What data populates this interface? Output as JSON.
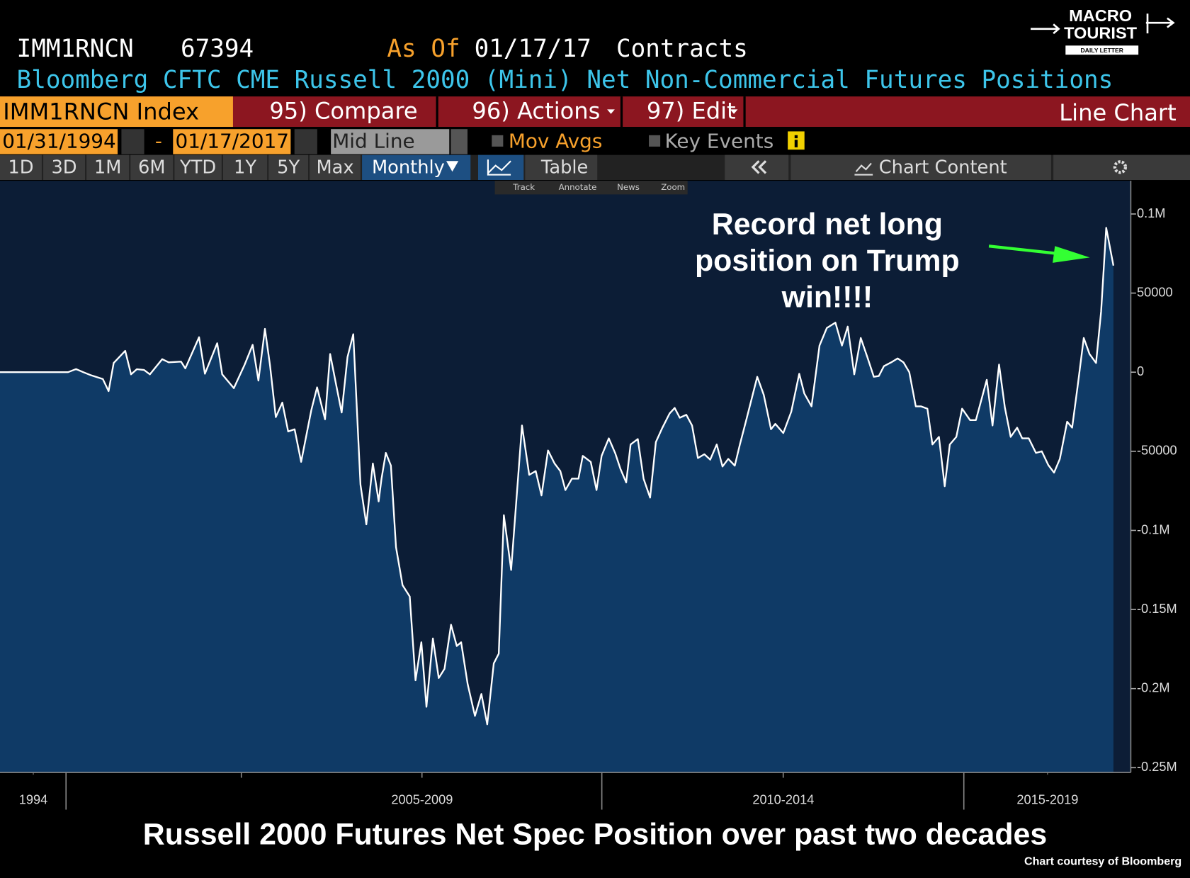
{
  "ui": {
    "ticker": "IMM1RNCN",
    "last": "67394",
    "as_of": "As Of",
    "as_of_date": "01/17/17",
    "units": "Contracts",
    "description": "Bloomberg CFTC CME Russell 2000 (Mini) Net Non-Commercial Futures Positions",
    "security": "IMM1RNCN Index",
    "menu": [
      "95) Compare",
      "96) Actions",
      "97) Edit"
    ],
    "view": "Line Chart",
    "start_date": "01/31/1994",
    "date_sep": "-",
    "end_date": "01/17/2017",
    "mid_line": "Mid Line",
    "mov_avgs": "Mov Avgs",
    "key_events": "Key Events",
    "periods": [
      "1D",
      "3D",
      "1M",
      "6M",
      "YTD",
      "1Y",
      "5Y",
      "Max"
    ],
    "frequency": "Monthly",
    "table": "Table",
    "chart_content": "Chart Content",
    "tools": [
      "Track",
      "Annotate",
      "News",
      "Zoom"
    ]
  },
  "logo": {
    "line1": "MACRO",
    "line2": "TOURIST",
    "line3": "DAILY LETTER"
  },
  "chart_data": {
    "type": "area-line",
    "title": "Russell 2000 Futures Net Spec Position over past two decades",
    "annotation": [
      "Record net long",
      "position on Trump",
      "win!!!!"
    ],
    "credit": "Chart courtesy of Bloomberg",
    "xlim": [
      2001.69,
      2017.31
    ],
    "xticks": [
      {
        "value": 2002.15,
        "label": "1994"
      },
      {
        "value": 2007.52,
        "label": "2005-2009"
      },
      {
        "value": 2012.51,
        "label": "2010-2014"
      },
      {
        "value": 2016.16,
        "label": "2015-2019"
      }
    ],
    "ylim": [
      -253000,
      121000
    ],
    "yticks": [
      {
        "value": 100000,
        "label": "0.1M"
      },
      50000,
      0,
      -50000,
      {
        "value": -100000,
        "label": "-0.1M"
      },
      {
        "value": -150000,
        "label": "-0.15M"
      },
      {
        "value": -200000,
        "label": "-0.2M"
      },
      {
        "value": -250000,
        "label": "-0.25M"
      }
    ],
    "series": [
      {
        "color": "#ffffff",
        "fill": "#0f3a66",
        "x": [
          2001.69,
          2002.32,
          2002.63,
          2002.74,
          2002.84,
          2002.95,
          2003.11,
          2003.19,
          2003.26,
          2003.42,
          2003.5,
          2003.58,
          2003.68,
          2003.76,
          2003.93,
          2004.02,
          2004.19,
          2004.25,
          2004.44,
          2004.52,
          2004.69,
          2004.76,
          2004.92,
          2005.07,
          2005.18,
          2005.26,
          2005.35,
          2005.42,
          2005.5,
          2005.59,
          2005.67,
          2005.76,
          2005.85,
          2005.99,
          2006.07,
          2006.18,
          2006.25,
          2006.33,
          2006.41,
          2006.49,
          2006.57,
          2006.67,
          2006.75,
          2006.84,
          2006.92,
          2006.96,
          2007.02,
          2007.09,
          2007.16,
          2007.25,
          2007.35,
          2007.43,
          2007.51,
          2007.58,
          2007.67,
          2007.75,
          2007.83,
          2007.92,
          2008.0,
          2008.06,
          2008.15,
          2008.25,
          2008.34,
          2008.42,
          2008.51,
          2008.58,
          2008.65,
          2008.75,
          2008.9,
          2009.0,
          2009.09,
          2009.17,
          2009.26,
          2009.35,
          2009.43,
          2009.5,
          2009.59,
          2009.68,
          2009.74,
          2009.85,
          2009.93,
          2010.0,
          2010.1,
          2010.19,
          2010.26,
          2010.34,
          2010.4,
          2010.5,
          2010.58,
          2010.67,
          2010.75,
          2010.84,
          2010.94,
          2011.01,
          2011.08,
          2011.17,
          2011.25,
          2011.33,
          2011.42,
          2011.5,
          2011.59,
          2011.67,
          2011.75,
          2011.84,
          2011.91,
          2011.99,
          2012.15,
          2012.24,
          2012.34,
          2012.4,
          2012.51,
          2012.62,
          2012.73,
          2012.8,
          2012.9,
          2013.01,
          2013.11,
          2013.23,
          2013.32,
          2013.4,
          2013.49,
          2013.58,
          2013.67,
          2013.76,
          2013.83,
          2013.9,
          2014.0,
          2014.09,
          2014.17,
          2014.25,
          2014.34,
          2014.41,
          2014.5,
          2014.57,
          2014.66,
          2014.74,
          2014.81,
          2014.9,
          2014.98,
          2015.09,
          2015.17,
          2015.32,
          2015.4,
          2015.49,
          2015.57,
          2015.65,
          2015.74,
          2015.81,
          2015.9,
          2016.0,
          2016.08,
          2016.17,
          2016.25,
          2016.33,
          2016.43,
          2016.5,
          2016.58,
          2016.66,
          2016.74,
          2016.83,
          2016.9,
          2016.97,
          2017.07
        ],
        "values": [
          0,
          0,
          0,
          2000,
          0,
          -2000,
          -4300,
          -12000,
          5800,
          13500,
          -1400,
          1900,
          1400,
          -1400,
          8200,
          6200,
          6700,
          2400,
          22100,
          -1000,
          18300,
          -1400,
          -10100,
          4800,
          17300,
          -5300,
          27400,
          4300,
          -28400,
          -19200,
          -37500,
          -36100,
          -56700,
          -24000,
          -9600,
          -29800,
          11500,
          -7200,
          -25500,
          9600,
          24000,
          -71200,
          -96200,
          -57700,
          -81700,
          -67300,
          -51000,
          -59100,
          -110600,
          -134600,
          -141800,
          -194700,
          -170700,
          -211500,
          -168300,
          -193300,
          -187500,
          -159600,
          -173100,
          -170700,
          -197100,
          -217300,
          -203400,
          -222600,
          -184100,
          -177900,
          -90400,
          -125000,
          -33700,
          -64900,
          -62500,
          -77900,
          -49500,
          -57700,
          -62500,
          -74500,
          -67300,
          -67300,
          -52900,
          -56700,
          -74500,
          -52900,
          -41800,
          -51400,
          -61100,
          -69700,
          -45700,
          -42300,
          -67300,
          -79300,
          -44200,
          -35100,
          -26000,
          -22600,
          -28800,
          -26900,
          -33700,
          -54300,
          -51900,
          -55300,
          -45700,
          -59600,
          -54800,
          -59100,
          -45700,
          -31700,
          -2900,
          -14400,
          -36100,
          -32700,
          -38500,
          -25000,
          -1000,
          -13500,
          -21600,
          16800,
          27900,
          31300,
          16800,
          28800,
          -1400,
          21600,
          9600,
          -2900,
          -2400,
          3800,
          6200,
          8700,
          6200,
          0,
          -21600,
          -21600,
          -23100,
          -45700,
          -40900,
          -72100,
          -45700,
          -40900,
          -23100,
          -30300,
          -30300,
          -4800,
          -33700,
          4800,
          -22100,
          -40900,
          -35100,
          -41800,
          -41800,
          -51000,
          -50000,
          -58700,
          -63500,
          -54800,
          -31300,
          -35100,
          -7200,
          21600,
          11500,
          5800,
          38500,
          91300,
          67394
        ]
      }
    ]
  }
}
